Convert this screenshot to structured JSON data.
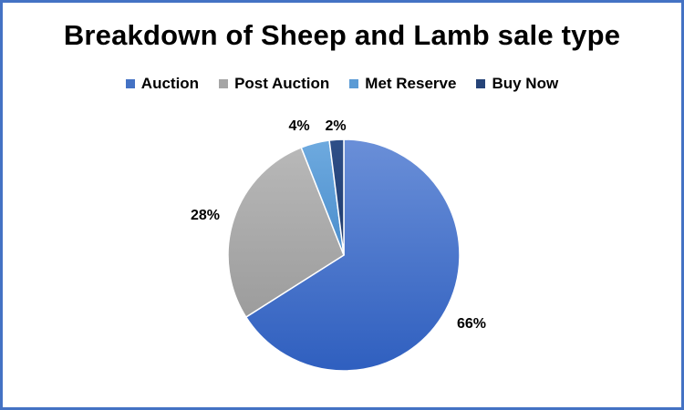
{
  "chart_data": {
    "type": "pie",
    "title": "Breakdown of Sheep and Lamb sale type",
    "categories": [
      "Auction",
      "Post Auction",
      "Met Reserve",
      "Buy Now"
    ],
    "values": [
      66,
      28,
      4,
      2
    ],
    "labels": [
      "66%",
      "28%",
      "4%",
      "2%"
    ],
    "colors": [
      "#4472c4",
      "#a5a5a5",
      "#5b9bd5",
      "#264478"
    ],
    "legend_position": "top"
  }
}
